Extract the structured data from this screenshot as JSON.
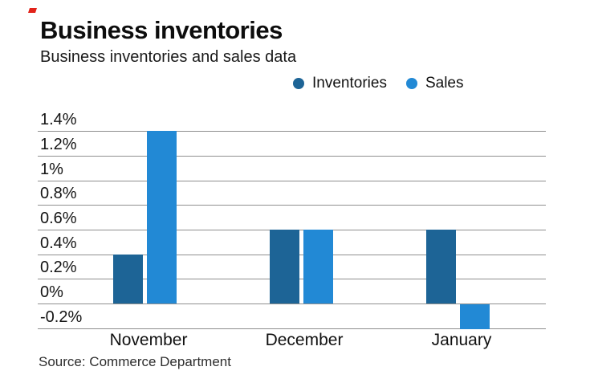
{
  "header": {
    "brand_mark_color": "#e2231a"
  },
  "chart_data": {
    "type": "bar",
    "title": "Business inventories",
    "subtitle": "Business inventories and sales data",
    "categories": [
      "November",
      "December",
      "January"
    ],
    "series": [
      {
        "name": "Inventories",
        "color": "#1d6496",
        "values": [
          0.4,
          0.6,
          0.6
        ]
      },
      {
        "name": "Sales",
        "color": "#2289d5",
        "values": [
          1.4,
          0.6,
          -0.2
        ]
      }
    ],
    "y_ticks": [
      {
        "label": "1.4%",
        "value": 1.4
      },
      {
        "label": "1.2%",
        "value": 1.2
      },
      {
        "label": "1%",
        "value": 1.0
      },
      {
        "label": "0.8%",
        "value": 0.8
      },
      {
        "label": "0.6%",
        "value": 0.6
      },
      {
        "label": "0.4%",
        "value": 0.4
      },
      {
        "label": "0.2%",
        "value": 0.2
      },
      {
        "label": "0%",
        "value": 0.0
      },
      {
        "label": "-0.2%",
        "value": -0.2
      }
    ],
    "ylim": [
      -0.2,
      1.4
    ],
    "grid": true,
    "legend_position": "top-right",
    "gridline_color": "#8f8f8f",
    "source": "Source: Commerce Department"
  }
}
